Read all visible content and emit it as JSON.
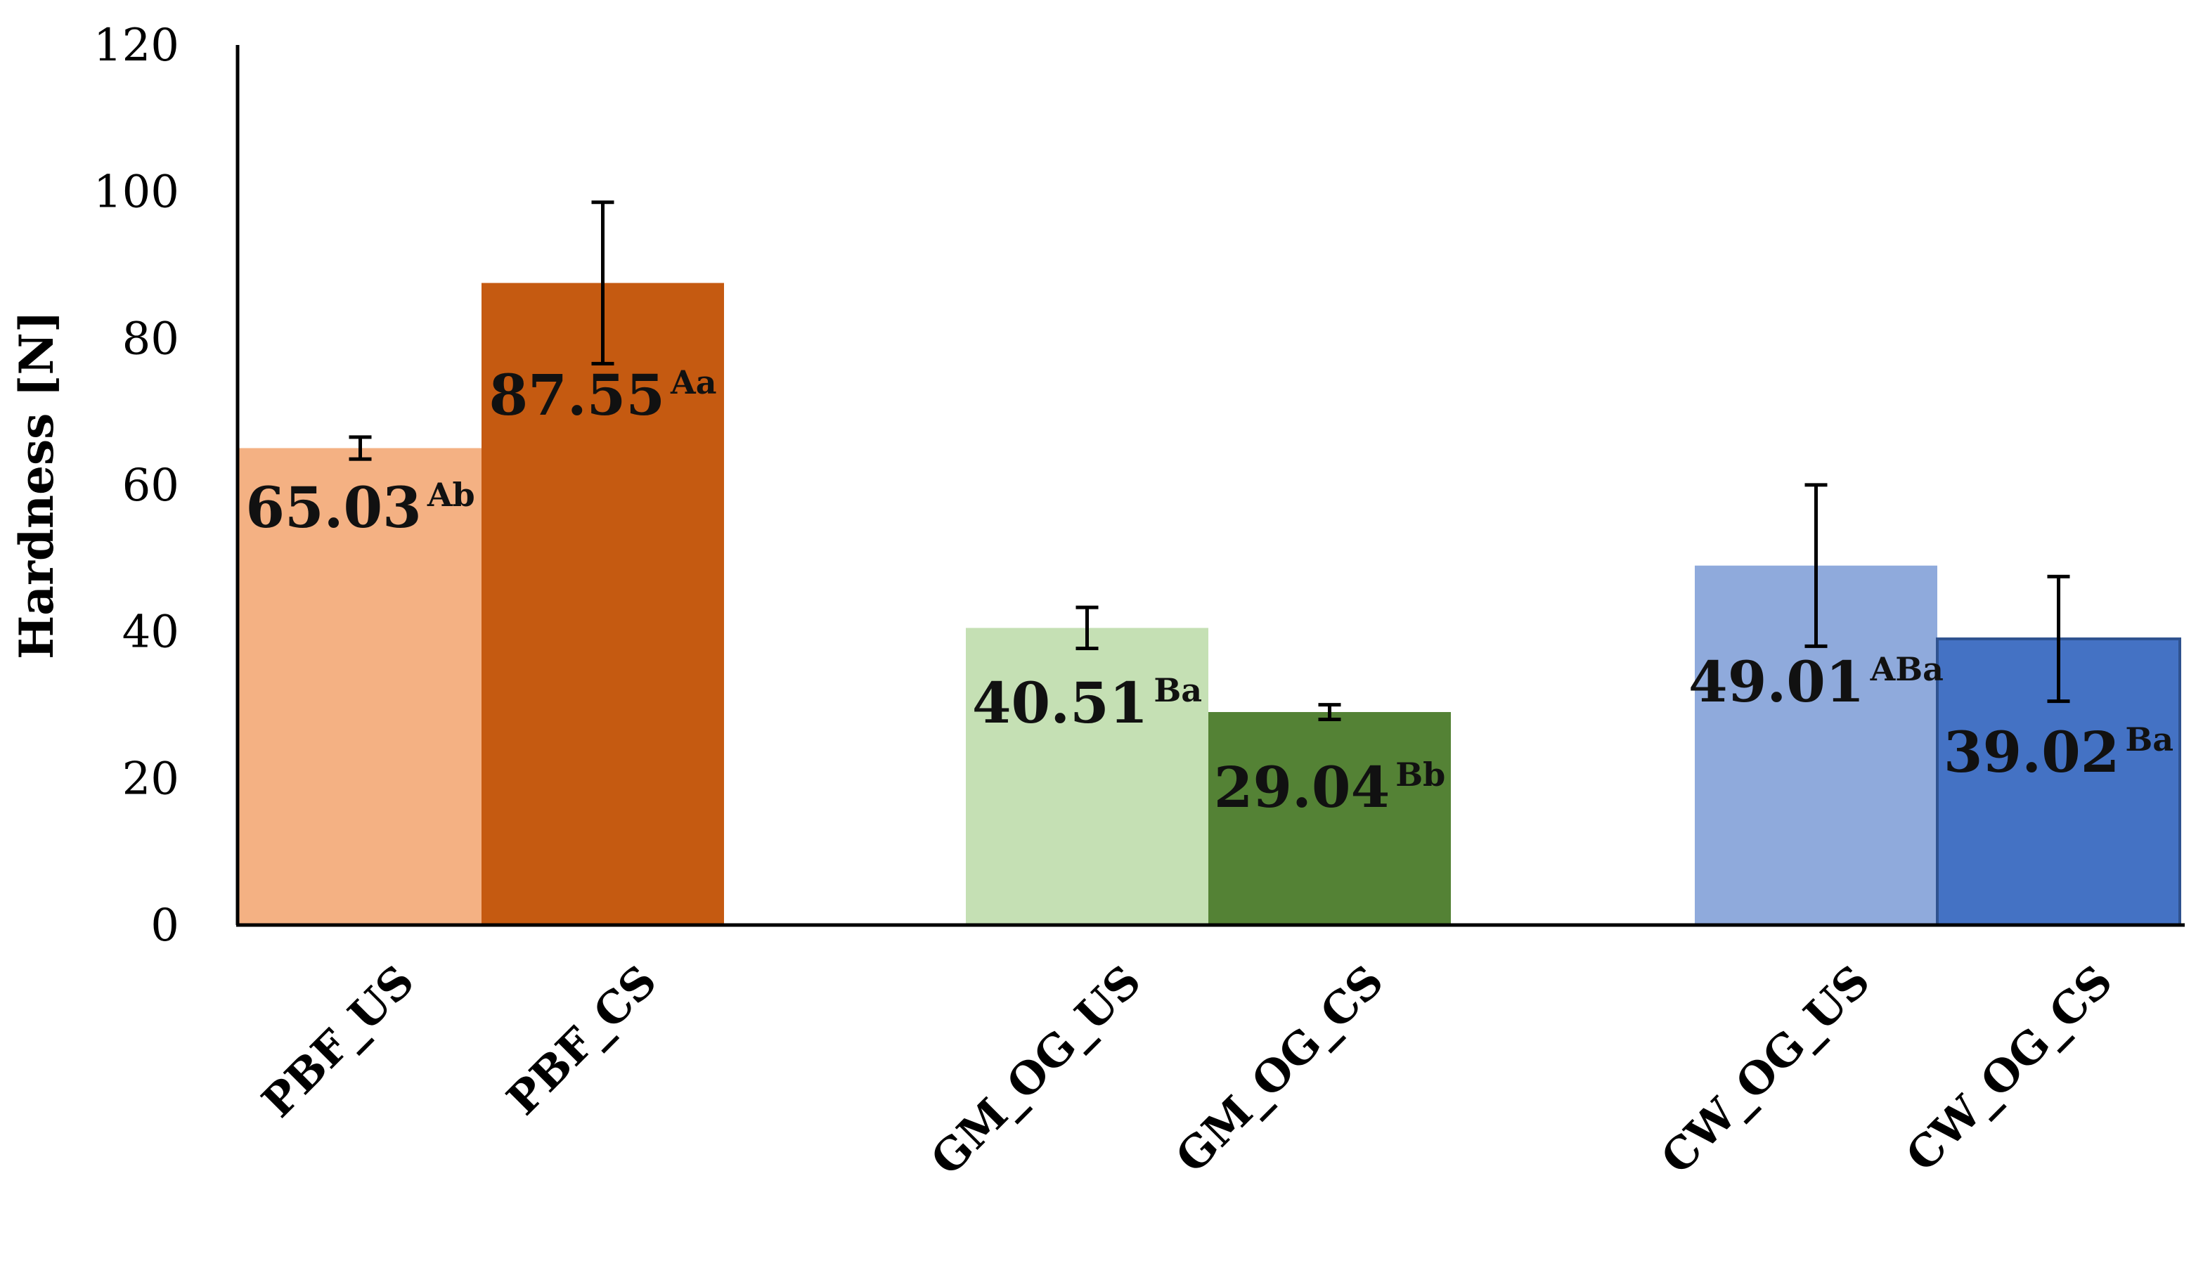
{
  "chart_data": {
    "type": "bar",
    "title": "",
    "xlabel": "",
    "ylabel": "Hardness [N]",
    "ylim": [
      0,
      120
    ],
    "yticks": [
      0,
      20,
      40,
      60,
      80,
      100,
      120
    ],
    "grid": false,
    "legend": "none",
    "categories": [
      "PBF_US",
      "PBF_CS",
      "GM_OG_US",
      "GM_OG_CS",
      "CW_OG_US",
      "CW_OG_CS"
    ],
    "values": [
      65.03,
      87.55,
      40.51,
      29.04,
      49.01,
      39.02
    ],
    "errors": [
      1.5,
      11.0,
      2.8,
      1.0,
      11.0,
      8.5
    ],
    "value_labels": [
      "65.03",
      "87.55",
      "40.51",
      "29.04",
      "49.01",
      "39.02"
    ],
    "letters": [
      "Ab",
      "Aa",
      "Ba",
      "Bb",
      "ABa",
      "Ba"
    ],
    "colors": [
      "#F4B183",
      "#C55A11",
      "#C5E0B4",
      "#548235",
      "#8FAADC",
      "#4472C4"
    ]
  }
}
